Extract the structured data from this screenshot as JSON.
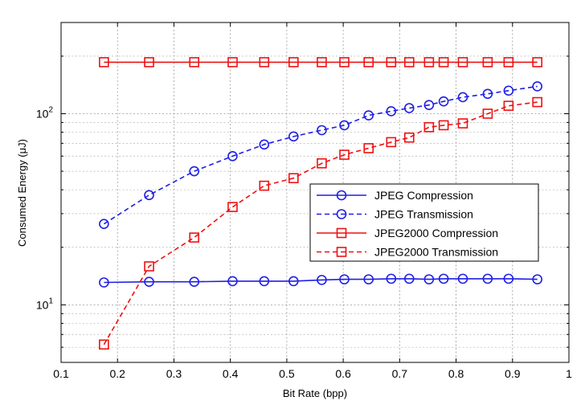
{
  "chart_data": {
    "type": "line",
    "title": "",
    "xlabel": "Bit Rate (bpp)",
    "ylabel": "Consumed Energy (μJ)",
    "xlim": [
      0.1,
      1.0
    ],
    "ylim": [
      5,
      300
    ],
    "yscale": "log",
    "grid": true,
    "legend_position": "center-right",
    "x_ticks": [
      0.1,
      0.2,
      0.3,
      0.4,
      0.5,
      0.6,
      0.7,
      0.8,
      0.9,
      1.0
    ],
    "x_tick_labels": [
      "0.1",
      "0.2",
      "0.3",
      "0.4",
      "0.5",
      "0.6",
      "0.7",
      "0.8",
      "0.9",
      "1"
    ],
    "y_tick_labels": [
      {
        "value": 10,
        "base": "10",
        "exp": "1"
      },
      {
        "value": 100,
        "base": "10",
        "exp": "2"
      }
    ],
    "series": [
      {
        "name": "JPEG Compression",
        "color": "#1f1fe6",
        "line": "solid",
        "marker": "circle",
        "x": [
          0.176,
          0.256,
          0.336,
          0.404,
          0.46,
          0.512,
          0.562,
          0.602,
          0.645,
          0.685,
          0.717,
          0.752,
          0.778,
          0.812,
          0.856,
          0.893,
          0.944
        ],
        "values": [
          13.1,
          13.2,
          13.2,
          13.3,
          13.3,
          13.3,
          13.5,
          13.6,
          13.6,
          13.7,
          13.7,
          13.6,
          13.7,
          13.7,
          13.7,
          13.7,
          13.6
        ]
      },
      {
        "name": "JPEG Transmission",
        "color": "#1f1fe6",
        "line": "dashed",
        "marker": "circle",
        "x": [
          0.176,
          0.256,
          0.336,
          0.404,
          0.46,
          0.512,
          0.562,
          0.602,
          0.645,
          0.685,
          0.717,
          0.752,
          0.778,
          0.812,
          0.856,
          0.893,
          0.944
        ],
        "values": [
          26.5,
          37.5,
          50,
          60,
          69,
          76,
          82,
          87,
          98,
          103,
          107,
          111,
          116,
          122,
          127,
          132,
          139
        ]
      },
      {
        "name": "JPEG2000 Compression",
        "color": "#ee1111",
        "line": "solid",
        "marker": "square",
        "x": [
          0.176,
          0.256,
          0.336,
          0.404,
          0.46,
          0.512,
          0.562,
          0.602,
          0.645,
          0.685,
          0.717,
          0.752,
          0.778,
          0.812,
          0.856,
          0.893,
          0.944
        ],
        "values": [
          186,
          186,
          186,
          186,
          186,
          186,
          186,
          186,
          186,
          186,
          186,
          186,
          186,
          186,
          186,
          186,
          186
        ]
      },
      {
        "name": "JPEG2000 Transmission",
        "color": "#ee1111",
        "line": "dashed",
        "marker": "square",
        "x": [
          0.176,
          0.256,
          0.336,
          0.404,
          0.46,
          0.512,
          0.562,
          0.602,
          0.645,
          0.685,
          0.717,
          0.752,
          0.778,
          0.812,
          0.856,
          0.893,
          0.944
        ],
        "values": [
          6.2,
          15.9,
          22.5,
          32.5,
          42,
          46,
          55,
          61,
          66,
          71,
          75,
          85,
          87,
          89,
          100,
          110,
          115
        ]
      }
    ]
  }
}
